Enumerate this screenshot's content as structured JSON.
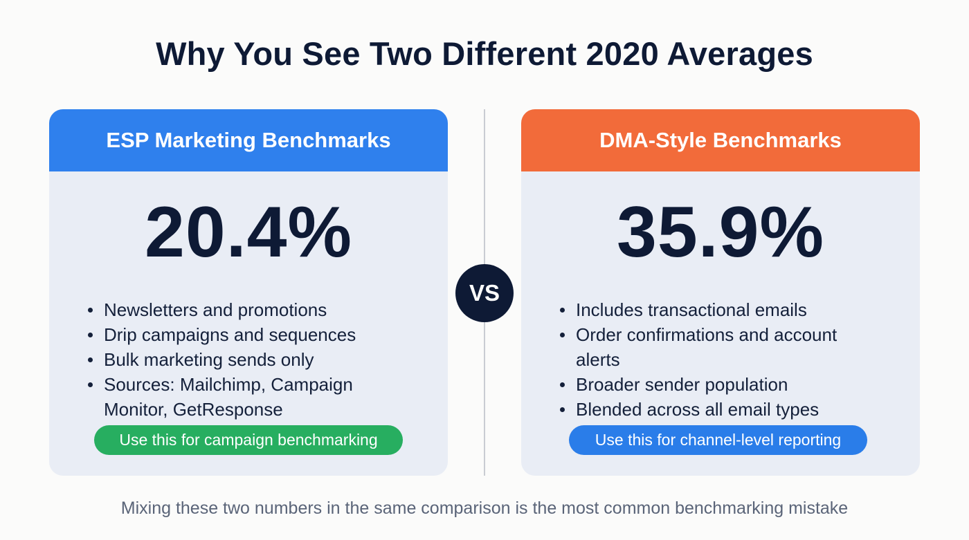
{
  "title": "Why You See Two Different 2020 Averages",
  "colors": {
    "left_header": "#2f80ed",
    "right_header": "#f26b3a",
    "left_pill": "#27ae60",
    "right_pill": "#2a7de9",
    "vs_circle": "#0e1a35",
    "card_bg": "#e9edf5"
  },
  "left_card": {
    "header": "ESP Marketing Benchmarks",
    "value": "20.4%",
    "bullets": [
      "Newsletters and promotions",
      "Drip campaigns and sequences",
      "Bulk marketing sends only",
      "Sources: Mailchimp, Campaign Monitor, GetResponse"
    ],
    "pill": "Use this for campaign benchmarking"
  },
  "vs_label": "VS",
  "right_card": {
    "header": "DMA-Style Benchmarks",
    "value": "35.9%",
    "bullets": [
      "Includes transactional emails",
      "Order confirmations and account alerts",
      "Broader sender population",
      "Blended across all email types"
    ],
    "pill": "Use this for channel-level reporting"
  },
  "footer": "Mixing these two numbers in the same comparison is the most common benchmarking mistake"
}
